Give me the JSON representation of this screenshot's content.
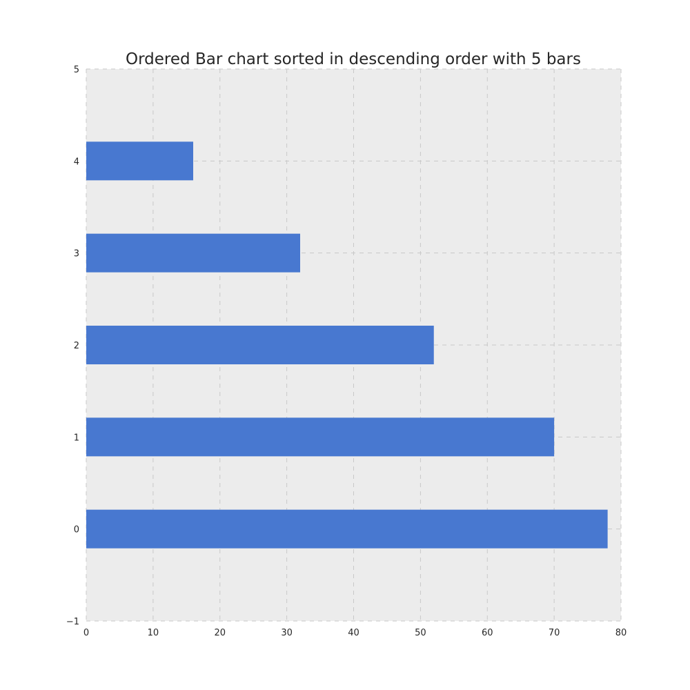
{
  "chart_data": {
    "type": "bar",
    "orientation": "horizontal",
    "title": "Ordered Bar chart sorted in descending order with 5 bars",
    "xlabel": "",
    "ylabel": "",
    "categories": [
      0,
      1,
      2,
      3,
      4
    ],
    "values": [
      78,
      70,
      52,
      32,
      16
    ],
    "xlim": [
      0,
      80
    ],
    "ylim": [
      -1,
      5
    ],
    "xticks": [
      0,
      10,
      20,
      30,
      40,
      50,
      60,
      70,
      80
    ],
    "yticks": [
      -1,
      0,
      1,
      2,
      3,
      4,
      5
    ],
    "xtick_labels": [
      "0",
      "10",
      "20",
      "30",
      "40",
      "50",
      "60",
      "70",
      "80"
    ],
    "ytick_labels": [
      "−1",
      "0",
      "1",
      "2",
      "3",
      "4",
      "5"
    ],
    "grid": true,
    "legend": "none",
    "bar_color": "#4878d0",
    "background_color": "#ececec"
  }
}
